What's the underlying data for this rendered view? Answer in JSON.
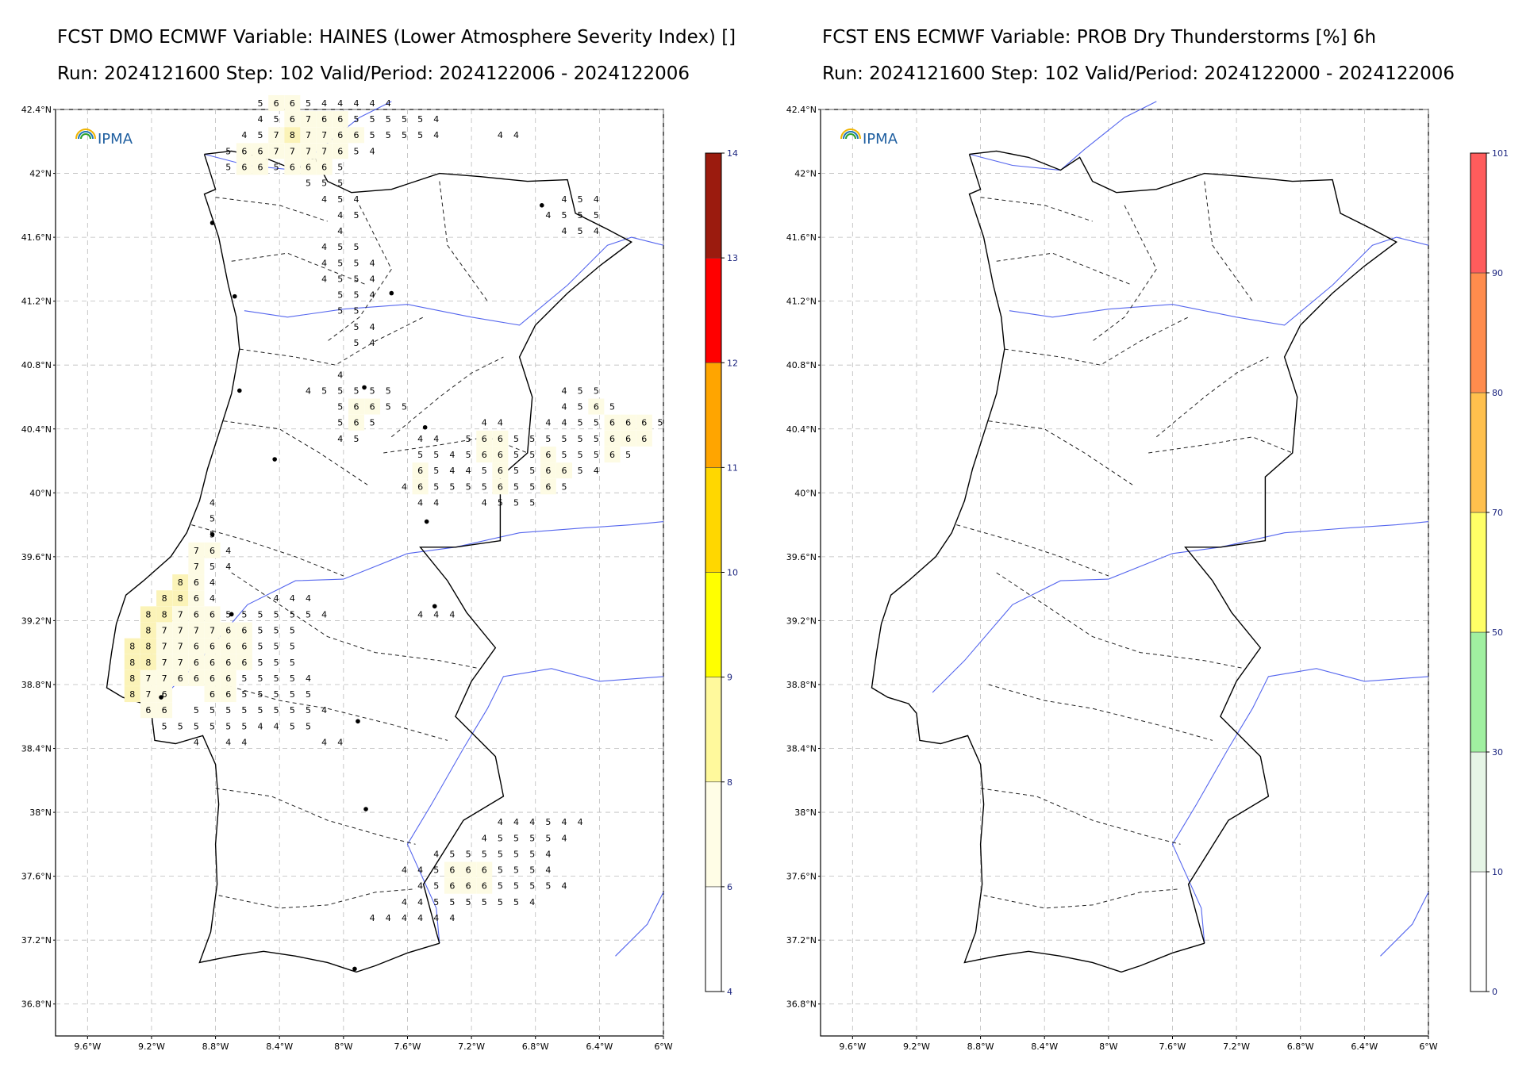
{
  "left_panel": {
    "title_line1": "FCST DMO ECMWF Variable: HAINES (Lower Atmosphere Severity Index) []",
    "title_line2": "Run: 2024121600 Step: 102 Valid/Period: 2024122006 - 2024122006",
    "logo_text": "IPMA",
    "colorbar": {
      "ticks": [
        "4",
        "6",
        "8",
        "9",
        "10",
        "11",
        "12",
        "13",
        "14"
      ],
      "colors": [
        "#ffffff",
        "#fffde6",
        "#fff99c",
        "#ffff00",
        "#ffd700",
        "#ffa500",
        "#ff0000",
        "#9b1b0e"
      ]
    },
    "grid_rows": [
      {
        "lat": 42.44,
        "lon0": -8.52,
        "values": "5 6 6 5 4 4 4 4 4"
      },
      {
        "lat": 42.34,
        "lon0": -8.52,
        "values": "4 5 6 7 6 6 5 5 5 5 5 4"
      },
      {
        "lat": 42.24,
        "lon0": -8.62,
        "values": "4 5 7 8 7 7 6 6 5 5 5 5 4 _ _ _ 4 4"
      },
      {
        "lat": 42.14,
        "lon0": -8.72,
        "values": "5 6 6 7 7 7 7 6 5 4"
      },
      {
        "lat": 42.04,
        "lon0": -8.72,
        "values": "5 6 6 5 6 6 6 5"
      },
      {
        "lat": 41.94,
        "lon0": -8.22,
        "values": "5 5 5"
      },
      {
        "lat": 41.84,
        "lon0": -8.12,
        "values": "4 5 4"
      },
      {
        "lat": 41.74,
        "lon0": -8.02,
        "values": "4 5"
      },
      {
        "lat": 41.64,
        "lon0": -8.02,
        "values": "4"
      },
      {
        "lat": 41.54,
        "lon0": -8.12,
        "values": "4 5 5"
      },
      {
        "lat": 41.44,
        "lon0": -8.12,
        "values": "4 5 5 4"
      },
      {
        "lat": 41.34,
        "lon0": -8.12,
        "values": "4 5 5 4"
      },
      {
        "lat": 41.24,
        "lon0": -8.02,
        "values": "5 5 4"
      },
      {
        "lat": 41.14,
        "lon0": -8.02,
        "values": "5 5"
      },
      {
        "lat": 41.04,
        "lon0": -7.92,
        "values": "5 4"
      },
      {
        "lat": 40.94,
        "lon0": -7.92,
        "values": "5 4"
      },
      {
        "lat": 40.74,
        "lon0": -8.02,
        "values": "4"
      },
      {
        "lat": 40.64,
        "lon0": -8.22,
        "values": "4 5 5 5 5 5"
      },
      {
        "lat": 40.54,
        "lon0": -8.02,
        "values": "5 6 6 5 5"
      },
      {
        "lat": 40.44,
        "lon0": -8.02,
        "values": "5 6 5"
      },
      {
        "lat": 40.34,
        "lon0": -8.02,
        "values": "4 5"
      },
      {
        "lat": 39.94,
        "lon0": -8.82,
        "values": "4"
      },
      {
        "lat": 39.84,
        "lon0": -8.82,
        "values": "5"
      },
      {
        "lat": 39.74,
        "lon0": -8.82,
        "values": "5"
      },
      {
        "lat": 39.64,
        "lon0": -8.92,
        "values": "7 6 4"
      },
      {
        "lat": 39.54,
        "lon0": -8.92,
        "values": "7 5 4"
      },
      {
        "lat": 39.44,
        "lon0": -9.02,
        "values": "8 6 4"
      },
      {
        "lat": 39.34,
        "lon0": -9.12,
        "values": "8 8 6 4 _ _ _ 4 4 4"
      },
      {
        "lat": 39.24,
        "lon0": -9.22,
        "values": "8 8 7 6 6 5 5 5 5 5 5 4"
      },
      {
        "lat": 39.14,
        "lon0": -9.22,
        "values": "8 7 7 7 7 6 6 5 5 5"
      },
      {
        "lat": 39.04,
        "lon0": -9.32,
        "values": "8 8 7 7 6 6 6 6 5 5 5"
      },
      {
        "lat": 38.94,
        "lon0": -9.32,
        "values": "8 8 7 7 6 6 6 6 5 5 5"
      },
      {
        "lat": 38.84,
        "lon0": -9.32,
        "values": "8 7 7 6 6 6 6 5 5 5 5 4"
      },
      {
        "lat": 38.74,
        "lon0": -9.32,
        "values": "8 7 6 _ _ 6 6 5 5 5 5 5"
      },
      {
        "lat": 38.64,
        "lon0": -9.22,
        "values": "6 6 _ 5 5 5 5 5 5 5 5 4"
      },
      {
        "lat": 38.54,
        "lon0": -9.12,
        "values": "5 5 5 5 5 5 4 4 5 5"
      },
      {
        "lat": 38.44,
        "lon0": -8.92,
        "values": "4 _ 4 4 _ _ _ _ 4 4"
      },
      {
        "lat": 39.24,
        "lon0": -7.52,
        "values": "4 4 4"
      },
      {
        "lat": 40.44,
        "lon0": -7.12,
        "values": "4 4"
      },
      {
        "lat": 40.34,
        "lon0": -7.52,
        "values": "4 4 _ 5 6 6 5 5 5 5 5 5 6 6 6"
      },
      {
        "lat": 40.24,
        "lon0": -7.52,
        "values": "5 5 4 5 6 6 5 5 6 5 5 5 6 5"
      },
      {
        "lat": 40.14,
        "lon0": -7.52,
        "values": "6 5 4 4 5 6 5 5 6 6 5 4"
      },
      {
        "lat": 40.04,
        "lon0": -7.62,
        "values": "4 6 5 5 5 5 6 5 5 6 5"
      },
      {
        "lat": 39.94,
        "lon0": -7.52,
        "values": "4 4 _ _ 4 5 5 5"
      },
      {
        "lat": 40.44,
        "lon0": -6.72,
        "values": "4 4 5 5 6 6 6 5"
      },
      {
        "lat": 40.54,
        "lon0": -6.62,
        "values": "4 5 6 5"
      },
      {
        "lat": 40.64,
        "lon0": -6.62,
        "values": "4 5 5"
      },
      {
        "lat": 41.84,
        "lon0": -6.62,
        "values": "4 5 4"
      },
      {
        "lat": 41.74,
        "lon0": -6.72,
        "values": "4 5 5 5"
      },
      {
        "lat": 41.64,
        "lon0": -6.62,
        "values": "4 5 4"
      },
      {
        "lat": 37.94,
        "lon0": -7.02,
        "values": "4 4 4 5 4 4"
      },
      {
        "lat": 37.84,
        "lon0": -7.12,
        "values": "4 5 5 5 5 4"
      },
      {
        "lat": 37.74,
        "lon0": -7.42,
        "values": "4 5 5 5 5 5 5 4"
      },
      {
        "lat": 37.64,
        "lon0": -7.62,
        "values": "4 4 5 6 6 6 5 5 5 4"
      },
      {
        "lat": 37.54,
        "lon0": -7.52,
        "values": "4 5 6 6 6 5 5 5 5 4"
      },
      {
        "lat": 37.44,
        "lon0": -7.62,
        "values": "4 4 5 5 5 5 5 5 4"
      },
      {
        "lat": 37.34,
        "lon0": -7.82,
        "values": "4 4 4 4 4 4"
      }
    ]
  },
  "right_panel": {
    "title_line1": "FCST ENS ECMWF Variable: PROB Dry Thunderstorms [%] 6h",
    "title_line2": "Run: 2024121600 Step: 102 Valid/Period: 2024122000 - 2024122006",
    "logo_text": "IPMA",
    "colorbar": {
      "ticks": [
        "0",
        "10",
        "30",
        "50",
        "70",
        "80",
        "90",
        "101"
      ],
      "colors": [
        "#ffffff",
        "#e6f5e6",
        "#a0f0a0",
        "#ffff66",
        "#ffc04d",
        "#ff8c4d",
        "#ff5c5c"
      ]
    }
  },
  "axes": {
    "lat_labels": [
      "42.4°N",
      "42°N",
      "41.6°N",
      "41.2°N",
      "40.8°N",
      "40.4°N",
      "40°N",
      "39.6°N",
      "39.2°N",
      "38.8°N",
      "38.4°N",
      "38°N",
      "37.6°N",
      "37.2°N",
      "36.8°N"
    ],
    "lat_values": [
      42.4,
      42.0,
      41.6,
      41.2,
      40.8,
      40.4,
      40.0,
      39.6,
      39.2,
      38.8,
      38.4,
      38.0,
      37.6,
      37.2,
      36.8
    ],
    "lon_labels": [
      "9.6°W",
      "9.2°W",
      "8.8°W",
      "8.4°W",
      "8°W",
      "7.6°W",
      "7.2°W",
      "6.8°W",
      "6.4°W",
      "6°W"
    ],
    "lon_values": [
      -9.6,
      -9.2,
      -8.8,
      -8.4,
      -8.0,
      -7.6,
      -7.2,
      -6.8,
      -6.4,
      -6.0
    ],
    "extent": {
      "lon": [
        -9.8,
        -6.0
      ],
      "lat": [
        36.6,
        42.4
      ]
    }
  },
  "cities": [
    {
      "lon": -8.82,
      "lat": 41.69
    },
    {
      "lon": -8.68,
      "lat": 41.23
    },
    {
      "lon": -7.7,
      "lat": 41.25
    },
    {
      "lon": -6.76,
      "lat": 41.8
    },
    {
      "lon": -8.65,
      "lat": 40.64
    },
    {
      "lon": -7.87,
      "lat": 40.66
    },
    {
      "lon": -7.49,
      "lat": 40.41
    },
    {
      "lon": -8.43,
      "lat": 40.21
    },
    {
      "lon": -8.82,
      "lat": 39.74
    },
    {
      "lon": -7.48,
      "lat": 39.82
    },
    {
      "lon": -8.7,
      "lat": 39.24
    },
    {
      "lon": -7.43,
      "lat": 39.29
    },
    {
      "lon": -9.14,
      "lat": 38.72
    },
    {
      "lon": -7.91,
      "lat": 38.57
    },
    {
      "lon": -7.86,
      "lat": 38.02
    },
    {
      "lon": -7.93,
      "lat": 37.02
    }
  ]
}
